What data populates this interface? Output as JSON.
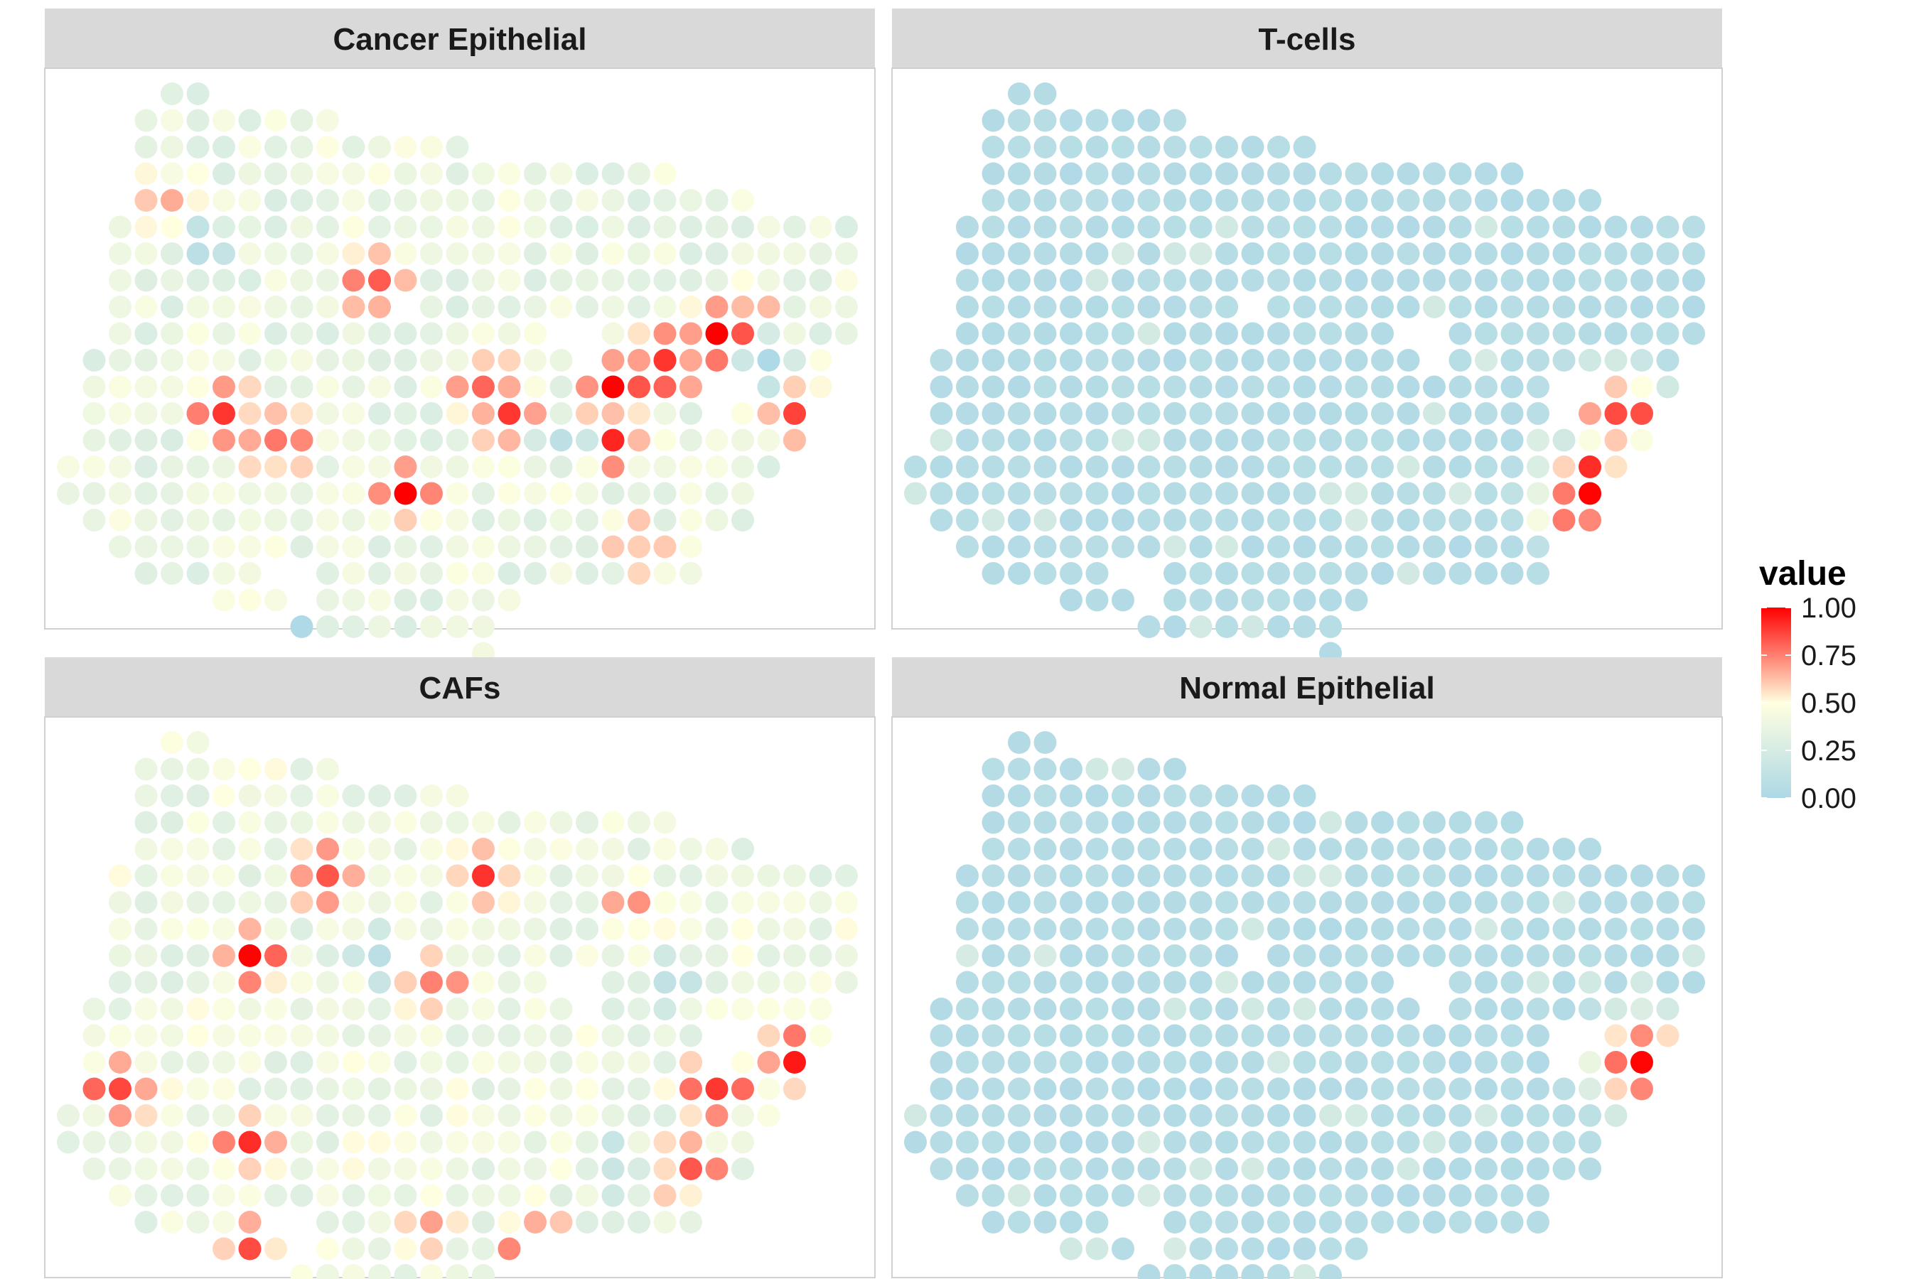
{
  "chart_data": {
    "type": "scatter",
    "description_source": "spatial spot map, faceted",
    "color_scale": {
      "low": "#ADD8E6",
      "mid": "#FFFFE0",
      "high": "#FF0000",
      "midpoint": 0.5,
      "limits": [
        0,
        1
      ]
    },
    "legend": {
      "title": "value",
      "placement": "right",
      "breaks": [
        1.0,
        0.75,
        0.5,
        0.25,
        0.0
      ],
      "labels": [
        "1.00",
        "0.75",
        "0.50",
        "0.25",
        "0.00"
      ]
    },
    "facets": [
      {
        "title": "Cancer Epithelial",
        "default_value": 0.38,
        "peaks": [
          {
            "row": 9,
            "col": 25,
            "v": 1.0
          },
          {
            "row": 10,
            "col": 23,
            "v": 1.0
          },
          {
            "row": 11,
            "col": 21,
            "v": 0.98
          },
          {
            "row": 13,
            "col": 21,
            "v": 0.95
          },
          {
            "row": 7,
            "col": 12,
            "v": 0.92
          },
          {
            "row": 15,
            "col": 13,
            "v": 0.9
          },
          {
            "row": 12,
            "col": 17,
            "v": 0.88
          },
          {
            "row": 11,
            "col": 16,
            "v": 0.86
          },
          {
            "row": 12,
            "col": 6,
            "v": 0.85
          },
          {
            "row": 13,
            "col": 8,
            "v": 0.85
          },
          {
            "row": 12,
            "col": 28,
            "v": 0.82
          },
          {
            "row": 4,
            "col": 4,
            "v": 0.75
          },
          {
            "row": 8,
            "col": 26,
            "v": 0.72
          },
          {
            "row": 17,
            "col": 22,
            "v": 0.7
          }
        ],
        "lows": [
          {
            "row": 6,
            "col": 5,
            "v": 0.05
          },
          {
            "row": 20,
            "col": 9,
            "v": 0.1
          },
          {
            "row": 13,
            "col": 19,
            "v": 0.1
          },
          {
            "row": 10,
            "col": 27,
            "v": 0.1
          }
        ]
      },
      {
        "title": "T-cells",
        "default_value": 0.05,
        "peaks": [
          {
            "row": 15,
            "col": 26,
            "v": 1.0
          },
          {
            "row": 12,
            "col": 27,
            "v": 0.85
          }
        ],
        "lows": []
      },
      {
        "title": "CAFs",
        "default_value": 0.4,
        "peaks": [
          {
            "row": 19,
            "col": 18,
            "v": 1.0
          },
          {
            "row": 5,
            "col": 10,
            "v": 0.9
          },
          {
            "row": 5,
            "col": 16,
            "v": 0.88
          },
          {
            "row": 8,
            "col": 7,
            "v": 0.9
          },
          {
            "row": 12,
            "col": 28,
            "v": 0.9
          },
          {
            "row": 13,
            "col": 2,
            "v": 0.9
          },
          {
            "row": 13,
            "col": 25,
            "v": 0.88
          },
          {
            "row": 16,
            "col": 24,
            "v": 0.87
          },
          {
            "row": 15,
            "col": 7,
            "v": 0.85
          },
          {
            "row": 9,
            "col": 14,
            "v": 0.82
          },
          {
            "row": 6,
            "col": 22,
            "v": 0.75
          },
          {
            "row": 18,
            "col": 14,
            "v": 0.75
          },
          {
            "row": 19,
            "col": 7,
            "v": 0.8
          }
        ],
        "lows": [
          {
            "row": 8,
            "col": 12,
            "v": 0.05
          },
          {
            "row": 9,
            "col": 23,
            "v": 0.08
          },
          {
            "row": 16,
            "col": 21,
            "v": 0.08
          }
        ]
      },
      {
        "title": "Normal Epithelial",
        "default_value": 0.05,
        "peaks": [
          {
            "row": 12,
            "col": 28,
            "v": 1.0
          }
        ],
        "lows": []
      }
    ]
  }
}
